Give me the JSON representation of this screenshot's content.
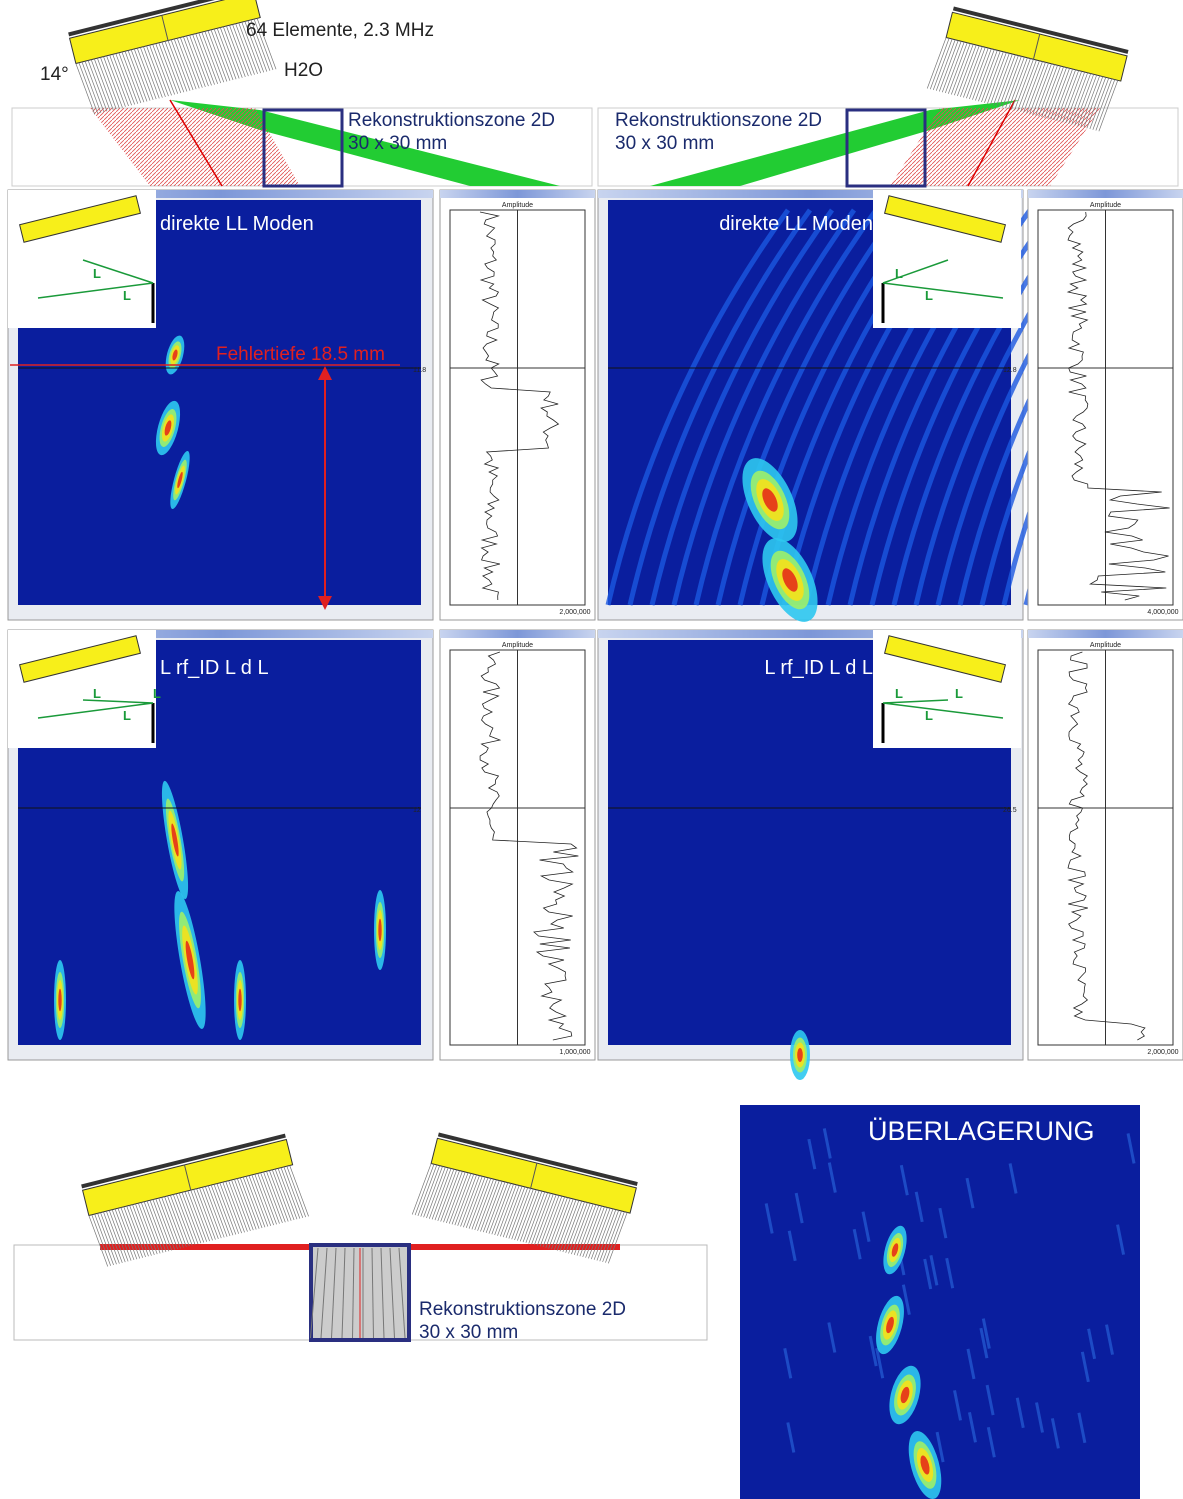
{
  "top_diagram": {
    "probe_label": "64 Elemente, 2.3 MHz",
    "angle": "14°",
    "medium": "H2O",
    "zones": [
      {
        "title": "Rekonstruktionszone 2D",
        "size": "30 x 30 mm"
      },
      {
        "title": "Rekonstruktionszone 2D",
        "size": "30 x 30 mm"
      }
    ]
  },
  "panels": [
    {
      "title": "direkte LL Moden",
      "annotation": "Fehlertiefe 18.5 mm",
      "cursor_label": "11.8",
      "amplitude_header": "Amplitude",
      "amplitude_tick": "2,000,000",
      "wave_labels": [
        "L",
        "L"
      ]
    },
    {
      "title": "direkte LL Moden",
      "cursor_label": "12.8",
      "amplitude_header": "Amplitude",
      "amplitude_tick": "4,000,000",
      "wave_labels": [
        "L",
        "L"
      ]
    },
    {
      "title": "L rf_ID L d L",
      "cursor_label": "12",
      "amplitude_header": "Amplitude",
      "amplitude_tick": "1,000,000",
      "wave_labels": [
        "L",
        "L",
        "L"
      ]
    },
    {
      "title": "L rf_ID L d L",
      "cursor_label": "26.5",
      "amplitude_header": "Amplitude",
      "amplitude_tick": "2,000,000",
      "wave_labels": [
        "L",
        "L",
        "L"
      ]
    }
  ],
  "bottom_diagram": {
    "zone_title": "Rekonstruktionszone 2D",
    "zone_size": "30 x 30 mm"
  },
  "overlay": {
    "title": "ÜBERLAGERUNG"
  }
}
